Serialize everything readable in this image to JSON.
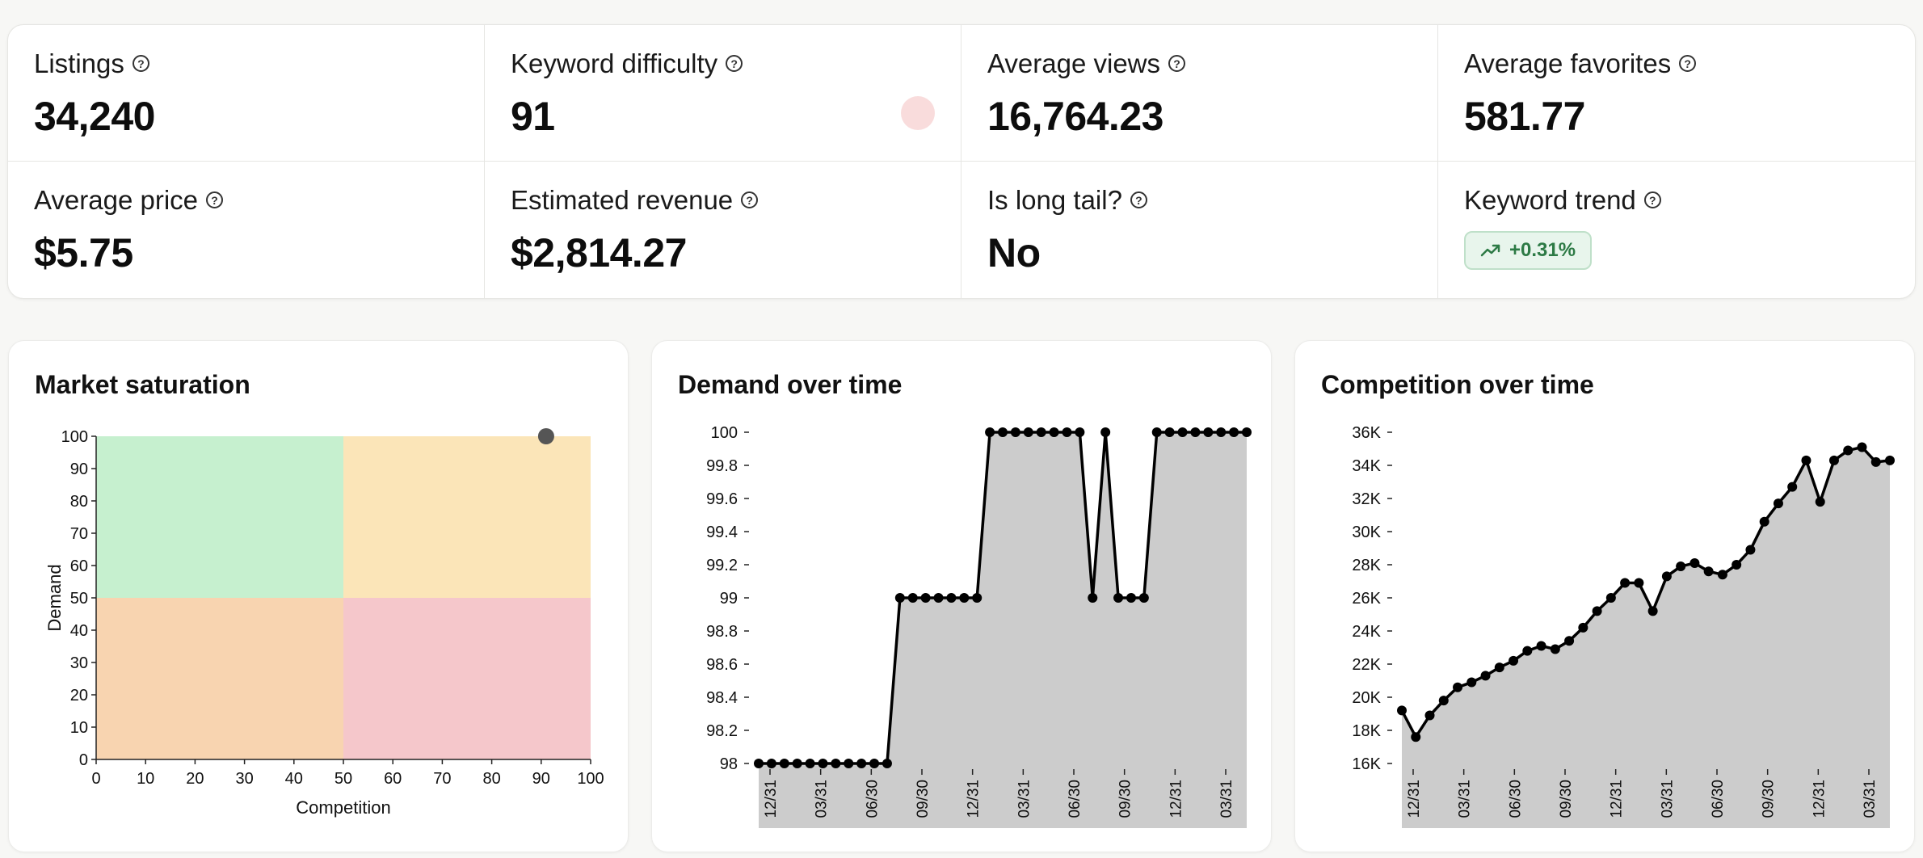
{
  "stats": [
    {
      "label": "Listings",
      "value": "34,240"
    },
    {
      "label": "Keyword difficulty",
      "value": "91"
    },
    {
      "label": "Average views",
      "value": "16,764.23"
    },
    {
      "label": "Average favorites",
      "value": "581.77"
    },
    {
      "label": "Average price",
      "value": "$5.75"
    },
    {
      "label": "Estimated revenue",
      "value": "$2,814.27"
    },
    {
      "label": "Is long tail?",
      "value": "No"
    },
    {
      "label": "Keyword trend",
      "value": "+0.31%"
    }
  ],
  "help_glyph": "?",
  "colors": {
    "difficulty_dot": "#f9dcdc",
    "trend_positive": "#2d7a45",
    "quad_low_comp_high_demand": "#c6f0cf",
    "quad_high_comp_high_demand": "#fbe5b8",
    "quad_low_comp_low_demand": "#f8d4b0",
    "quad_high_comp_low_demand": "#f5c7cb",
    "area_fill": "#cccccc",
    "line": "#000000",
    "marker": "#555555"
  },
  "chart_data": [
    {
      "type": "scatter",
      "title": "Market saturation",
      "xlabel": "Competition",
      "ylabel": "Demand",
      "xlim": [
        0,
        100
      ],
      "ylim": [
        0,
        100
      ],
      "xticks": [
        "0",
        "10",
        "20",
        "30",
        "40",
        "50",
        "60",
        "70",
        "80",
        "90",
        "100"
      ],
      "yticks": [
        "0",
        "10",
        "20",
        "30",
        "40",
        "50",
        "60",
        "70",
        "80",
        "90",
        "100"
      ],
      "quadrant_split": {
        "x": 50,
        "y": 50
      },
      "points": [
        {
          "x": 91,
          "y": 100
        }
      ]
    },
    {
      "type": "area",
      "title": "Demand over time",
      "ylim": [
        98,
        100
      ],
      "yticks": [
        "98",
        "98.2",
        "98.4",
        "98.6",
        "98.8",
        "99",
        "99.2",
        "99.4",
        "99.6",
        "99.8",
        "100"
      ],
      "xticks": [
        "12/31",
        "03/31",
        "06/30",
        "09/30",
        "12/31",
        "03/31",
        "06/30",
        "09/30",
        "12/31",
        "03/31"
      ],
      "values": [
        98,
        98,
        98,
        98,
        98,
        98,
        98,
        98,
        98,
        98,
        98,
        99,
        99,
        99,
        99,
        99,
        99,
        99,
        100,
        100,
        100,
        100,
        100,
        100,
        100,
        100,
        99,
        100,
        99,
        99,
        99,
        100,
        100,
        100,
        100,
        100,
        100,
        100,
        100
      ]
    },
    {
      "type": "area",
      "title": "Competition over time",
      "ylim": [
        16000,
        36000
      ],
      "yticks": [
        "16K",
        "18K",
        "20K",
        "22K",
        "24K",
        "26K",
        "28K",
        "30K",
        "32K",
        "34K",
        "36K"
      ],
      "xticks": [
        "12/31",
        "03/31",
        "06/30",
        "09/30",
        "12/31",
        "03/31",
        "06/30",
        "09/30",
        "12/31",
        "03/31"
      ],
      "values": [
        19200,
        17600,
        18900,
        19800,
        20600,
        20900,
        21300,
        21800,
        22200,
        22800,
        23100,
        22900,
        23400,
        24200,
        25200,
        26000,
        26900,
        26900,
        25200,
        27300,
        27900,
        28100,
        27600,
        27400,
        28000,
        28900,
        30600,
        31700,
        32700,
        34300,
        31800,
        34300,
        34900,
        35100,
        34200,
        34300
      ]
    }
  ]
}
